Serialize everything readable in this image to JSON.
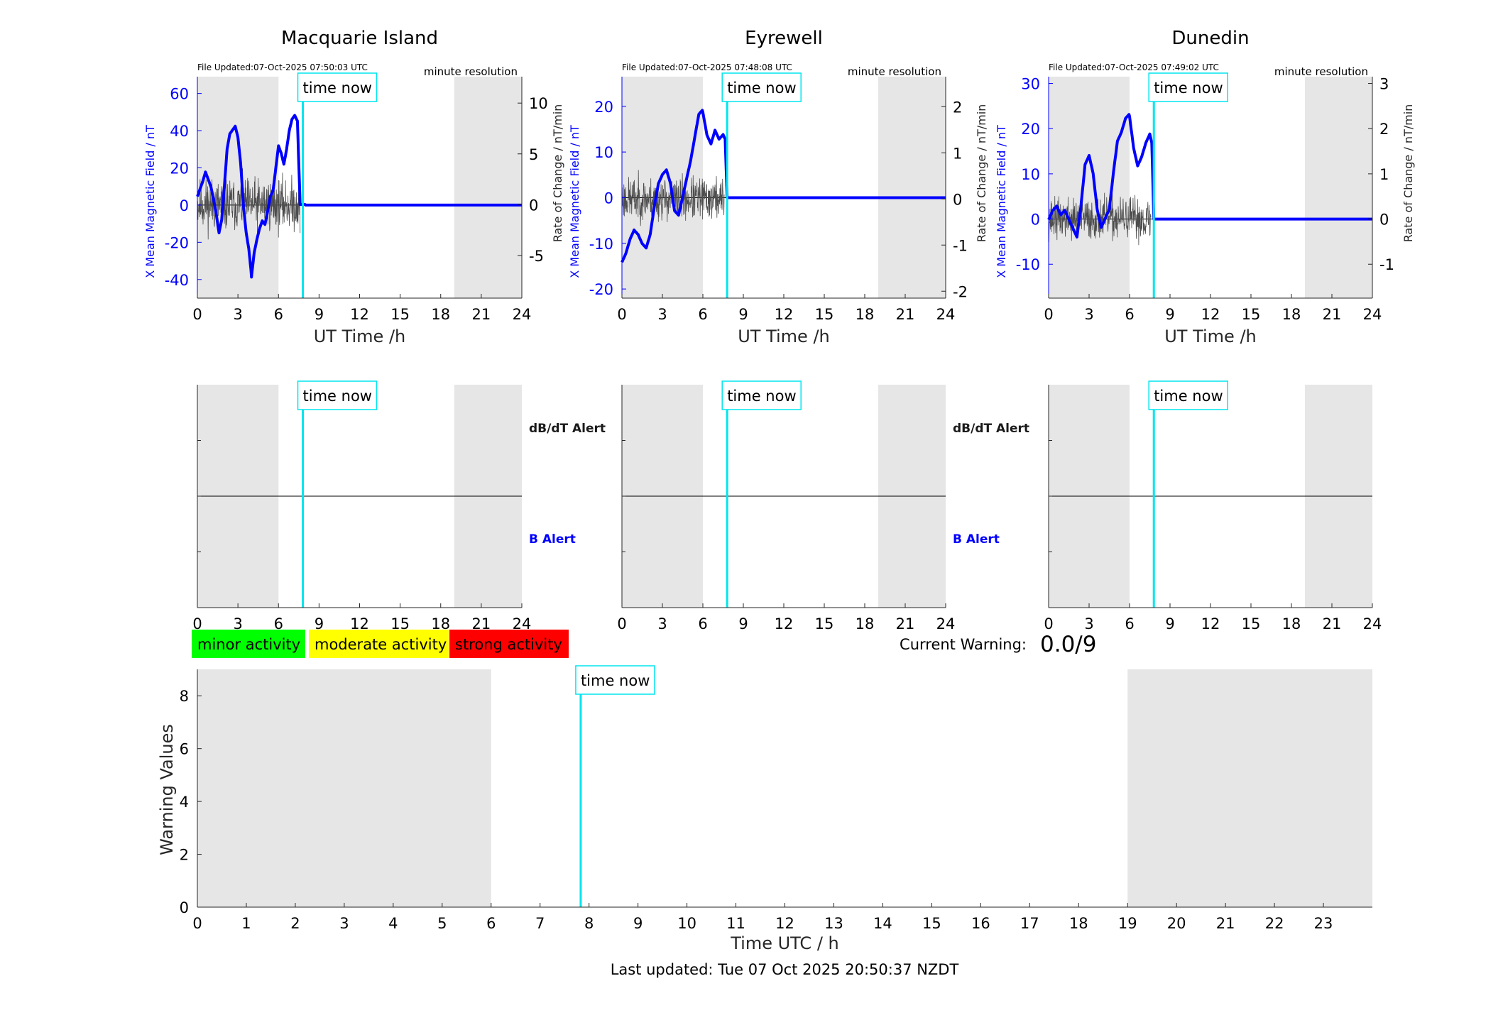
{
  "colors": {
    "field": "#0000ff",
    "rate": "#4d4d4d",
    "night": "#e6e6e6",
    "time_now": "#00e5ee",
    "axis": "#262626",
    "minor": "#00ff00",
    "moderate": "#ffff00",
    "strong": "#ff0000"
  },
  "time_now_label": "time now",
  "legend": {
    "minor": "minor activity",
    "moderate": "moderate activity",
    "strong": "strong activity"
  },
  "current_warning": {
    "label": "Current Warning:",
    "value": "0.0/9"
  },
  "last_updated": "Last updated: Tue 07 Oct 2025 20:50:37 NZDT",
  "chart_data": [
    {
      "type": "line",
      "title": "Macquarie Island",
      "file_updated": "File Updated:07-Oct-2025 07:50:03 UTC",
      "resolution": "minute resolution",
      "xlabel": "UT Time /h",
      "ylabel": "X Mean Magnetic Field / nT",
      "y2label": "Rate of Change / nT/min",
      "xlim": [
        0,
        24
      ],
      "xticks": [
        0,
        3,
        6,
        9,
        12,
        15,
        18,
        21,
        24
      ],
      "ylim": [
        -50,
        69
      ],
      "yticks": [
        -40,
        -20,
        0,
        20,
        40,
        60
      ],
      "y2lim": [
        -9.2,
        12.6
      ],
      "y2ticks": [
        -5,
        0,
        5,
        10
      ],
      "night": [
        [
          0,
          6
        ],
        [
          19,
          24
        ]
      ],
      "time_now": 7.8,
      "series": [
        {
          "axis": "left",
          "x": [
            0,
            0.2,
            0.4,
            0.6,
            0.8,
            1.0,
            1.2,
            1.4,
            1.6,
            1.8,
            2.0,
            2.2,
            2.4,
            2.6,
            2.8,
            3.0,
            3.2,
            3.4,
            3.6,
            3.8,
            4.0,
            4.2,
            4.4,
            4.6,
            4.8,
            5.0,
            5.2,
            5.4,
            5.6,
            5.8,
            6.0,
            6.2,
            6.4,
            6.6,
            6.8,
            7.0,
            7.2,
            7.4,
            7.6,
            7.8,
            8.0,
            24
          ],
          "values": [
            5,
            9,
            13,
            18,
            14,
            10,
            3,
            -5,
            -15,
            -8,
            10,
            30,
            38,
            40,
            42,
            36,
            22,
            0,
            -15,
            -24,
            -38,
            -25,
            -18,
            -12,
            -8,
            -10,
            -3,
            5,
            8,
            20,
            32,
            28,
            22,
            30,
            40,
            46,
            48,
            45,
            0,
            0,
            0,
            0
          ]
        },
        {
          "axis": "right",
          "x_range": [
            0,
            7.6
          ],
          "seed": 11,
          "amplitude": 2.5
        }
      ]
    },
    {
      "type": "line",
      "title": "Eyrewell",
      "file_updated": "File Updated:07-Oct-2025 07:48:08 UTC",
      "resolution": "minute resolution",
      "xlabel": "UT Time /h",
      "ylabel": "X Mean Magnetic Field / nT",
      "y2label": "Rate of Change / nT/min",
      "xlim": [
        0,
        24
      ],
      "xticks": [
        0,
        3,
        6,
        9,
        12,
        15,
        18,
        21,
        24
      ],
      "ylim": [
        -22,
        26.5
      ],
      "yticks": [
        -20,
        -10,
        0,
        10,
        20
      ],
      "y2lim": [
        -2.15,
        2.65
      ],
      "y2ticks": [
        -2,
        -1,
        0,
        1,
        2
      ],
      "night": [
        [
          0,
          6
        ],
        [
          19,
          24
        ]
      ],
      "time_now": 7.8,
      "series": [
        {
          "axis": "left",
          "x": [
            0,
            0.3,
            0.6,
            0.9,
            1.2,
            1.5,
            1.8,
            2.1,
            2.4,
            2.7,
            3.0,
            3.3,
            3.6,
            3.9,
            4.2,
            4.5,
            4.8,
            5.1,
            5.4,
            5.7,
            6.0,
            6.3,
            6.6,
            6.9,
            7.2,
            7.5,
            7.65,
            7.8,
            24
          ],
          "values": [
            -14,
            -12,
            -9,
            -7,
            -8,
            -10,
            -11,
            -8,
            -2,
            3,
            5,
            6,
            3,
            -3,
            -4,
            0,
            4,
            8,
            13,
            18,
            19,
            14,
            12,
            15,
            13,
            14,
            13,
            0,
            0
          ]
        },
        {
          "axis": "right",
          "x_range": [
            0,
            7.6
          ],
          "seed": 23,
          "amplitude": 0.45
        }
      ]
    },
    {
      "type": "line",
      "title": "Dunedin",
      "file_updated": "File Updated:07-Oct-2025 07:49:02 UTC",
      "resolution": "minute resolution",
      "xlabel": "UT Time /h",
      "ylabel": "X Mean Magnetic Field / nT",
      "y2label": "Rate of Change / nT/min",
      "xlim": [
        0,
        24
      ],
      "xticks": [
        0,
        3,
        6,
        9,
        12,
        15,
        18,
        21,
        24
      ],
      "ylim": [
        -17.5,
        31.5
      ],
      "yticks": [
        -10,
        0,
        10,
        20,
        30
      ],
      "y2lim": [
        -1.75,
        3.15
      ],
      "y2ticks": [
        -1,
        0,
        1,
        2,
        3
      ],
      "night": [
        [
          0,
          6
        ],
        [
          19,
          24
        ]
      ],
      "time_now": 7.8,
      "series": [
        {
          "axis": "left",
          "x": [
            0,
            0.3,
            0.6,
            0.9,
            1.2,
            1.5,
            1.8,
            2.1,
            2.4,
            2.7,
            3.0,
            3.3,
            3.6,
            3.9,
            4.2,
            4.5,
            4.8,
            5.1,
            5.4,
            5.7,
            6.0,
            6.3,
            6.6,
            6.9,
            7.2,
            7.5,
            7.65,
            7.8,
            24
          ],
          "values": [
            0,
            2,
            3,
            1,
            2,
            0,
            -2,
            -4,
            3,
            12,
            14,
            10,
            2,
            -2,
            0,
            2,
            10,
            17,
            19,
            22,
            23,
            16,
            12,
            14,
            17,
            19,
            17,
            0,
            0
          ]
        },
        {
          "axis": "right",
          "x_range": [
            0,
            7.6
          ],
          "seed": 37,
          "amplitude": 0.45
        }
      ]
    },
    {
      "type": "line",
      "title": "",
      "alert_labels": [
        "dB/dT Alert",
        "B Alert"
      ],
      "xlim": [
        0,
        24
      ],
      "xticks": [
        0,
        3,
        6,
        9,
        12,
        15,
        18,
        21,
        24
      ],
      "night": [
        [
          0,
          6
        ],
        [
          19,
          24
        ]
      ],
      "time_now": 7.8,
      "series": []
    },
    {
      "type": "line",
      "title": "",
      "alert_labels": [
        "dB/dT Alert",
        "B Alert"
      ],
      "xlim": [
        0,
        24
      ],
      "xticks": [
        0,
        3,
        6,
        9,
        12,
        15,
        18,
        21,
        24
      ],
      "night": [
        [
          0,
          6
        ],
        [
          19,
          24
        ]
      ],
      "time_now": 7.8,
      "series": []
    },
    {
      "type": "line",
      "title": "",
      "alert_labels": [],
      "xlim": [
        0,
        24
      ],
      "xticks": [
        0,
        3,
        6,
        9,
        12,
        15,
        18,
        21,
        24
      ],
      "night": [
        [
          0,
          6
        ],
        [
          19,
          24
        ]
      ],
      "time_now": 7.8,
      "series": []
    },
    {
      "type": "line",
      "title": "",
      "xlabel": "Time UTC / h",
      "ylabel": "Warning Values",
      "xlim": [
        0,
        24
      ],
      "xticks": [
        0,
        1,
        2,
        3,
        4,
        5,
        6,
        7,
        8,
        9,
        10,
        11,
        12,
        13,
        14,
        15,
        16,
        17,
        18,
        19,
        20,
        21,
        22,
        23
      ],
      "ylim": [
        0,
        9
      ],
      "yticks": [
        0,
        2,
        4,
        6,
        8
      ],
      "night": [
        [
          0,
          6
        ],
        [
          19,
          24
        ]
      ],
      "time_now": 7.83,
      "series": []
    }
  ]
}
